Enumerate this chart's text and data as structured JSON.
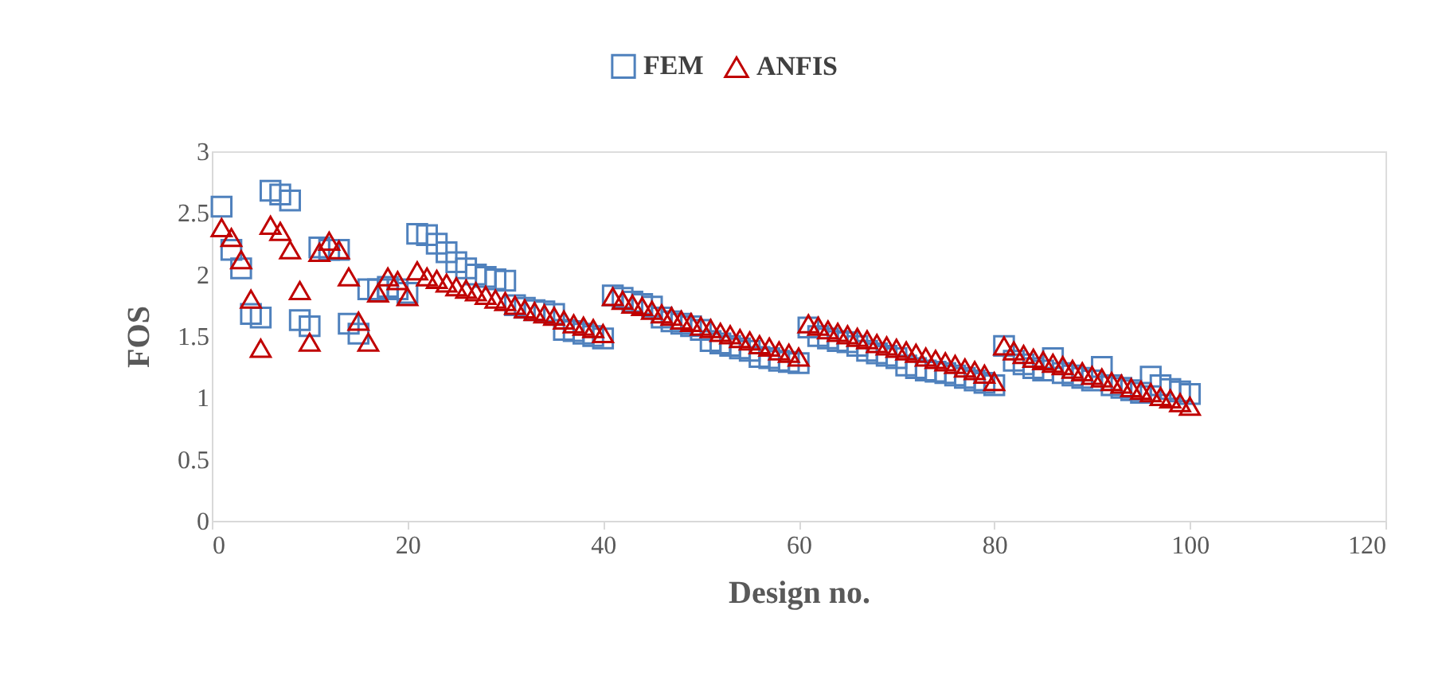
{
  "chart_data": {
    "type": "scatter",
    "xlabel": "Design no.",
    "ylabel": "FOS",
    "xlim": [
      0,
      120
    ],
    "xticks": [
      0,
      20,
      40,
      60,
      80,
      100,
      120
    ],
    "ylim": [
      0,
      3
    ],
    "yticks": [
      0,
      0.5,
      1,
      1.5,
      2,
      2.5,
      3
    ],
    "grid": false,
    "legend": "top",
    "x": [
      1,
      2,
      3,
      4,
      5,
      6,
      7,
      8,
      9,
      10,
      11,
      12,
      13,
      14,
      15,
      16,
      17,
      18,
      19,
      20,
      21,
      22,
      23,
      24,
      25,
      26,
      27,
      28,
      29,
      30,
      31,
      32,
      33,
      34,
      35,
      36,
      37,
      38,
      39,
      40,
      41,
      42,
      43,
      44,
      45,
      46,
      47,
      48,
      49,
      50,
      51,
      52,
      53,
      54,
      55,
      56,
      57,
      58,
      59,
      60,
      61,
      62,
      63,
      64,
      65,
      66,
      67,
      68,
      69,
      70,
      71,
      72,
      73,
      74,
      75,
      76,
      77,
      78,
      79,
      80,
      81,
      82,
      83,
      84,
      85,
      86,
      87,
      88,
      89,
      90,
      91,
      92,
      93,
      94,
      95,
      96,
      97,
      98,
      99,
      100
    ],
    "series": [
      {
        "name": "FEM",
        "color": "#4f81bd",
        "marker": "square",
        "values": [
          2.55,
          2.2,
          2.05,
          1.68,
          1.65,
          2.68,
          2.65,
          2.6,
          1.63,
          1.58,
          2.22,
          2.2,
          2.2,
          1.6,
          1.52,
          1.88,
          1.88,
          1.9,
          1.88,
          1.85,
          2.33,
          2.32,
          2.25,
          2.18,
          2.1,
          2.05,
          2.0,
          1.98,
          1.96,
          1.95,
          1.75,
          1.73,
          1.71,
          1.7,
          1.68,
          1.55,
          1.54,
          1.52,
          1.5,
          1.48,
          1.83,
          1.81,
          1.78,
          1.76,
          1.74,
          1.65,
          1.62,
          1.6,
          1.58,
          1.55,
          1.46,
          1.44,
          1.42,
          1.4,
          1.38,
          1.33,
          1.32,
          1.3,
          1.29,
          1.28,
          1.57,
          1.5,
          1.48,
          1.46,
          1.45,
          1.42,
          1.38,
          1.36,
          1.34,
          1.32,
          1.26,
          1.24,
          1.22,
          1.21,
          1.2,
          1.18,
          1.16,
          1.14,
          1.12,
          1.1,
          1.42,
          1.3,
          1.27,
          1.24,
          1.22,
          1.32,
          1.2,
          1.18,
          1.16,
          1.14,
          1.25,
          1.1,
          1.08,
          1.06,
          1.04,
          1.17,
          1.1,
          1.07,
          1.05,
          1.03
        ]
      },
      {
        "name": "ANFIS",
        "color": "#c00000",
        "marker": "triangle",
        "values": [
          2.38,
          2.3,
          2.12,
          1.8,
          1.4,
          2.4,
          2.35,
          2.2,
          1.87,
          1.45,
          2.18,
          2.27,
          2.2,
          1.98,
          1.62,
          1.45,
          1.85,
          1.98,
          1.95,
          1.82,
          2.03,
          1.98,
          1.96,
          1.93,
          1.9,
          1.88,
          1.86,
          1.83,
          1.8,
          1.78,
          1.75,
          1.72,
          1.7,
          1.68,
          1.66,
          1.63,
          1.6,
          1.58,
          1.56,
          1.52,
          1.82,
          1.79,
          1.76,
          1.74,
          1.71,
          1.68,
          1.66,
          1.63,
          1.61,
          1.58,
          1.56,
          1.53,
          1.51,
          1.48,
          1.46,
          1.43,
          1.41,
          1.38,
          1.36,
          1.33,
          1.6,
          1.58,
          1.55,
          1.53,
          1.51,
          1.49,
          1.47,
          1.44,
          1.42,
          1.4,
          1.38,
          1.36,
          1.33,
          1.31,
          1.29,
          1.27,
          1.24,
          1.22,
          1.19,
          1.13,
          1.42,
          1.38,
          1.35,
          1.32,
          1.3,
          1.28,
          1.26,
          1.23,
          1.21,
          1.18,
          1.16,
          1.13,
          1.11,
          1.08,
          1.06,
          1.04,
          1.01,
          0.99,
          0.96,
          0.93
        ]
      }
    ]
  }
}
